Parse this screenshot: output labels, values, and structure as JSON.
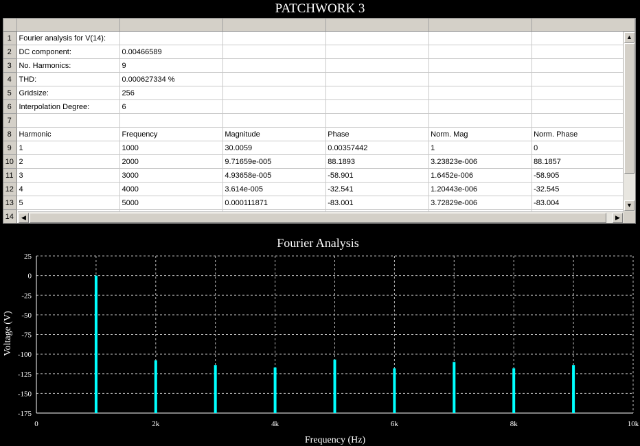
{
  "app_title": "PATCHWORK 3",
  "sheet": {
    "row_numbers": [
      "1",
      "2",
      "3",
      "4",
      "5",
      "6",
      "7",
      "8",
      "9",
      "10",
      "11",
      "12",
      "13",
      "14"
    ],
    "rows": [
      [
        "Fourier analysis for V(14):",
        "",
        "",
        "",
        "",
        ""
      ],
      [
        "DC component:",
        "0.00466589",
        "",
        "",
        "",
        ""
      ],
      [
        "No. Harmonics:",
        "9",
        "",
        "",
        "",
        ""
      ],
      [
        "THD:",
        "0.000627334 %",
        "",
        "",
        "",
        ""
      ],
      [
        "Gridsize:",
        "256",
        "",
        "",
        "",
        ""
      ],
      [
        "Interpolation Degree:",
        "6",
        "",
        "",
        "",
        ""
      ],
      [
        "",
        "",
        "",
        "",
        "",
        ""
      ],
      [
        "Harmonic",
        "Frequency",
        "Magnitude",
        "Phase",
        "Norm. Mag",
        "Norm. Phase"
      ],
      [
        "1",
        "1000",
        "30.0059",
        "0.00357442",
        "1",
        "0"
      ],
      [
        "2",
        "2000",
        "9.71659e-005",
        "88.1893",
        "3.23823e-006",
        "88.1857"
      ],
      [
        "3",
        "3000",
        "4.93658e-005",
        "-58.901",
        "1.6452e-006",
        "-58.905"
      ],
      [
        "4",
        "4000",
        "3.614e-005",
        "-32.541",
        "1.20443e-006",
        "-32.545"
      ],
      [
        "5",
        "5000",
        "0.000111871",
        "-83.001",
        "3.72829e-006",
        "-83.004"
      ]
    ]
  },
  "chart_data": {
    "type": "bar",
    "title": "Fourier Analysis",
    "xlabel": "Frequency (Hz)",
    "ylabel": "Voltage (V)",
    "xlim": [
      0,
      10000
    ],
    "ylim": [
      -175,
      25
    ],
    "x_ticks": [
      0,
      1000,
      2000,
      3000,
      4000,
      5000,
      6000,
      7000,
      8000,
      9000,
      10000
    ],
    "x_tick_labels": [
      "0",
      "",
      "2k",
      "",
      "4k",
      "",
      "6k",
      "",
      "8k",
      "",
      "10k"
    ],
    "y_ticks": [
      25,
      0,
      -25,
      -50,
      -75,
      -100,
      -125,
      -150,
      -175
    ],
    "y_tick_labels": [
      "25",
      "0",
      "-25",
      "-50",
      "-75",
      "-100",
      "-125",
      "-150",
      "-175"
    ],
    "grid": true,
    "baseline": -175,
    "x": [
      1000,
      2000,
      3000,
      4000,
      5000,
      6000,
      7000,
      8000,
      9000
    ],
    "values": [
      0,
      -108,
      -114,
      -117,
      -107,
      -118,
      -110,
      -118,
      -114
    ],
    "bar_color": "#00ffff"
  }
}
